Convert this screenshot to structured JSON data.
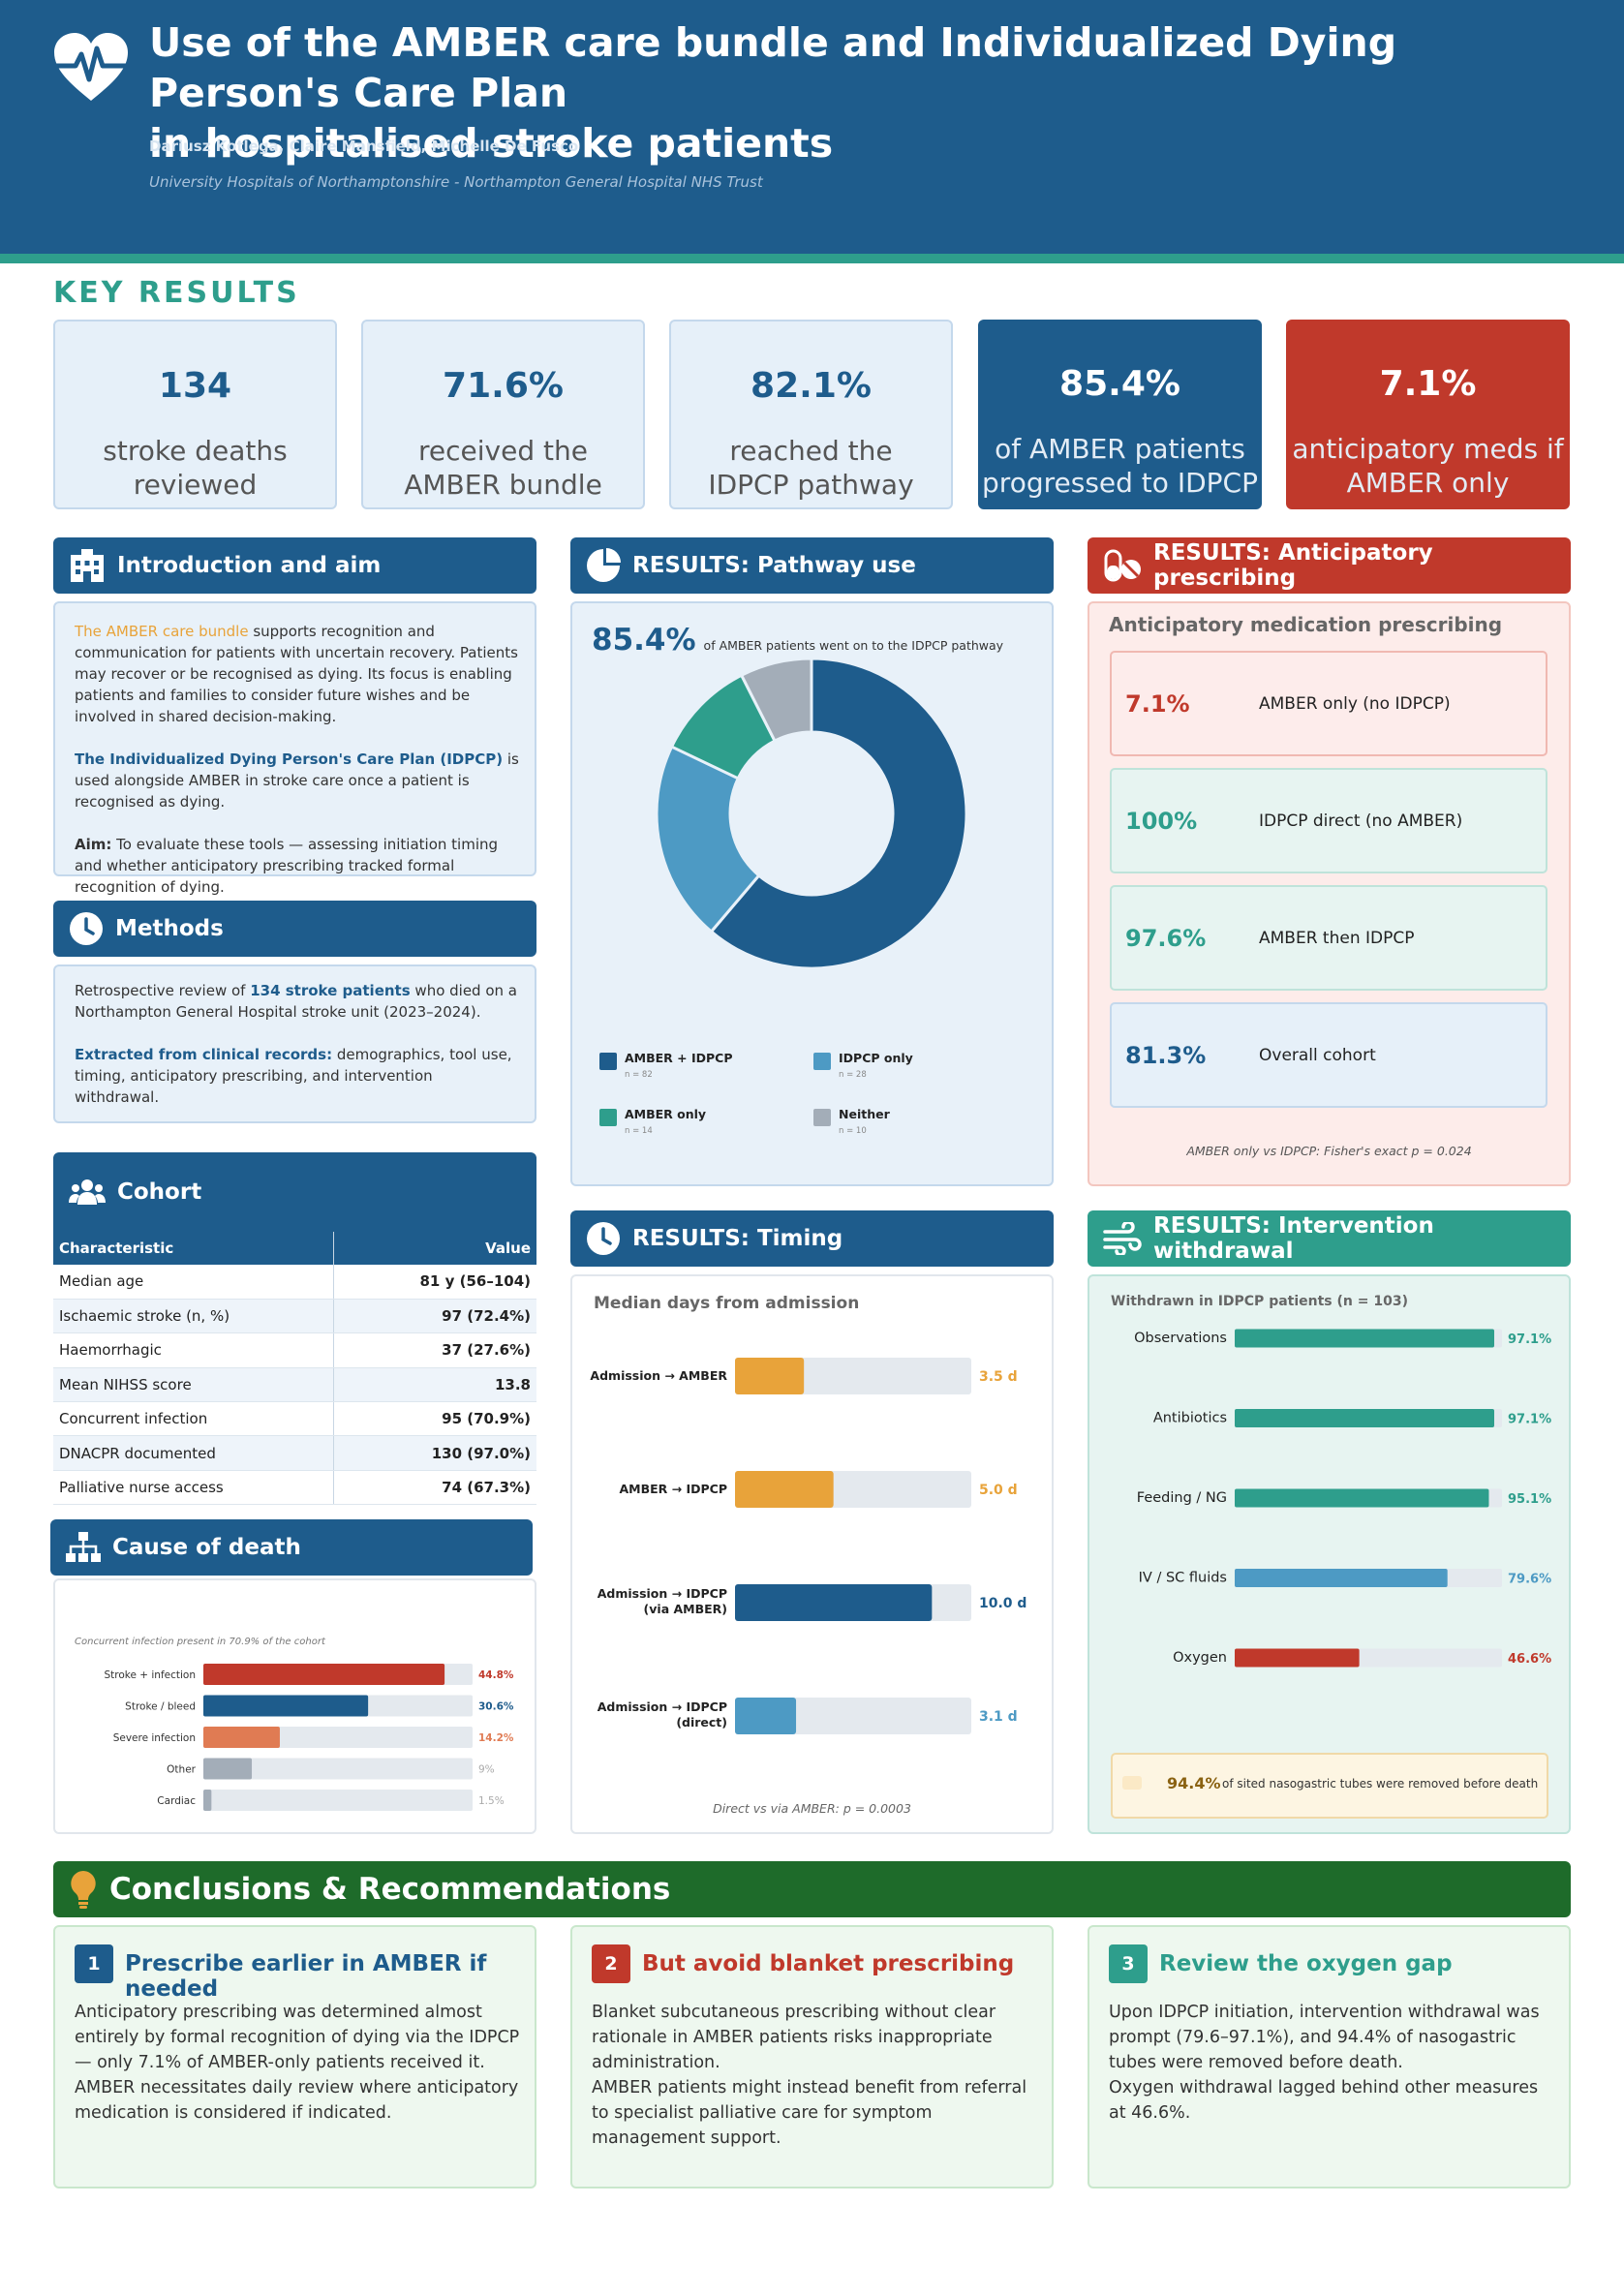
{
  "header": {
    "title_line1": "Use of the AMBER care bundle and Individualized Dying Person's Care Plan",
    "title_line2": "in hospitalised stroke patients",
    "authors": "Dariusz Kotlega, Claire Mansfield, Michelle De Fusco",
    "affiliation": "University Hospitals of Northamptonshire - Northampton General Hospital NHS Trust",
    "logo_icon": "heart-pulse-icon"
  },
  "key_results": {
    "heading": "KEY RESULTS",
    "cards": [
      {
        "value": "134",
        "label1": "stroke deaths",
        "label2": "reviewed"
      },
      {
        "value": "71.6%",
        "label1": "received the",
        "label2": "AMBER bundle"
      },
      {
        "value": "82.1%",
        "label1": "reached the",
        "label2": "IDPCP pathway"
      },
      {
        "value": "85.4%",
        "label1": "of AMBER patients",
        "label2": "progressed to IDPCP"
      },
      {
        "value": "7.1%",
        "label1": "anticipatory meds if",
        "label2": "AMBER only"
      }
    ]
  },
  "intro": {
    "heading": "Introduction and aim",
    "p1_highlight": "The AMBER care bundle",
    "p1_rest": " supports recognition and communication for patients with uncertain recovery. Patients may recover or be recognised as dying. Its focus is enabling patients and families to consider future wishes and be involved in shared decision-making.",
    "p2_highlight": "The Individualized Dying Person's Care Plan (IDPCP)",
    "p2_rest": " is used alongside AMBER in stroke care once a patient is recognised as dying.",
    "p3_label": "Aim:",
    "p3_rest": " To evaluate these tools — assessing initiation timing and whether anticipatory prescribing tracked formal recognition of dying."
  },
  "methods": {
    "heading": "Methods",
    "p1_a": "Retrospective review of ",
    "p1_highlight": "134 stroke patients",
    "p1_b": " who died on a Northampton General Hospital stroke unit (2023–2024).",
    "p2_highlight": "Extracted from clinical records:",
    "p2_rest": " demographics, tool use, timing, anticipatory prescribing, and intervention withdrawal."
  },
  "cohort": {
    "heading": "Cohort",
    "col1": "Characteristic",
    "col2": "Value",
    "rows": [
      {
        "label": "Median age",
        "value": "81 y (56–104)"
      },
      {
        "label": "Ischaemic stroke (n, %)",
        "value": "97 (72.4%)"
      },
      {
        "label": "Haemorrhagic",
        "value": "37 (27.6%)"
      },
      {
        "label": "Mean NIHSS score",
        "value": "13.8"
      },
      {
        "label": "Concurrent infection",
        "value": "95 (70.9%)"
      },
      {
        "label": "DNACPR documented",
        "value": "130 (97.0%)"
      },
      {
        "label": "Palliative nurse access",
        "value": "74 (67.3%)"
      }
    ]
  },
  "cause_of_death": {
    "heading": "Cause of death",
    "note": "Concurrent infection present in 70.9% of the cohort",
    "bars": [
      {
        "label": "Stroke + infection",
        "value": 44.8,
        "text": "44.8%",
        "color": "#c0392b"
      },
      {
        "label": "Stroke / bleed",
        "value": 30.6,
        "text": "30.6%",
        "color": "#1e5c8c"
      },
      {
        "label": "Severe infection",
        "value": 14.2,
        "text": "14.2%",
        "color": "#e07b53"
      },
      {
        "label": "Other",
        "value": 9,
        "text": "9%",
        "color": "#a3adb8"
      },
      {
        "label": "Cardiac",
        "value": 1.5,
        "text": "1.5%",
        "color": "#a3adb8"
      }
    ]
  },
  "pathway": {
    "heading": "RESULTS: Pathway use",
    "big_value": "85.4%",
    "big_caption": "of AMBER patients went on to the IDPCP pathway",
    "legend": [
      {
        "name": "AMBER + IDPCP",
        "n": "n = 82"
      },
      {
        "name": "IDPCP only",
        "n": "n = 28"
      },
      {
        "name": "AMBER only",
        "n": "n = 14"
      },
      {
        "name": "Neither",
        "n": "n = 10"
      }
    ]
  },
  "chart_data": [
    {
      "type": "pie",
      "title": "",
      "categories": [
        "AMBER + IDPCP",
        "IDPCP only",
        "AMBER only",
        "Neither"
      ],
      "values": [
        82,
        28,
        14,
        10
      ],
      "colors": [
        "#1e5c8c",
        "#4d9ac4",
        "#2e9e8c",
        "#a3adb8"
      ],
      "donut": true
    },
    {
      "type": "bar",
      "title": "Median days from admission",
      "categories": [
        "Admission → AMBER",
        "AMBER → IDPCP",
        "Admission → IDPCP (via AMBER)",
        "Admission → IDPCP (direct)"
      ],
      "values": [
        3.5,
        5.0,
        10.0,
        3.1
      ],
      "colors": [
        "#e8a33a",
        "#e8a33a",
        "#1e5c8c",
        "#4d9ac4"
      ],
      "xlim": [
        0,
        12
      ]
    },
    {
      "type": "bar",
      "title": "Withdrawn in IDPCP patients (n = 103)",
      "categories": [
        "Observations",
        "Antibiotics",
        "Feeding / NG",
        "IV / SC fluids",
        "Oxygen"
      ],
      "values": [
        97.1,
        97.1,
        95.1,
        79.6,
        46.6
      ],
      "colors": [
        "#2e9e8c",
        "#2e9e8c",
        "#2e9e8c",
        "#4d9ac4",
        "#c0392b"
      ],
      "xlim": [
        0,
        100
      ]
    },
    {
      "type": "bar",
      "title": "",
      "categories": [
        "Stroke + infection",
        "Stroke / bleed",
        "Severe infection",
        "Other",
        "Cardiac"
      ],
      "values": [
        44.8,
        30.6,
        14.2,
        9,
        1.5
      ],
      "xlim": [
        0,
        50
      ]
    }
  ],
  "timing": {
    "heading": "RESULTS: Timing",
    "subtitle": "Median days from admission",
    "rows": [
      {
        "label1": "Admission → AMBER",
        "label2": "",
        "value": 3.5,
        "text": "3.5 d",
        "color": "#e8a33a"
      },
      {
        "label1": "AMBER → IDPCP",
        "label2": "",
        "value": 5.0,
        "text": "5.0 d",
        "color": "#e8a33a"
      },
      {
        "label1": "Admission → IDPCP",
        "label2": "(via AMBER)",
        "value": 10.0,
        "text": "10.0 d",
        "color": "#1e5c8c"
      },
      {
        "label1": "Admission → IDPCP",
        "label2": "(direct)",
        "value": 3.1,
        "text": "3.1 d",
        "color": "#4d9ac4"
      }
    ],
    "footnote": "Direct vs via AMBER: p = 0.0003"
  },
  "prescribing": {
    "heading": "RESULTS: Anticipatory prescribing",
    "subtitle": "Anticipatory medication prescribing",
    "rows": [
      {
        "value": "7.1%",
        "label": "AMBER only (no IDPCP)",
        "color": "#c0392b",
        "bg": "#fdeceb",
        "border": "#f0b8b1"
      },
      {
        "value": "100%",
        "label": "IDPCP direct (no AMBER)",
        "color": "#2e9e8c",
        "bg": "#e7f4f1",
        "border": "#bfe3da"
      },
      {
        "value": "97.6%",
        "label": "AMBER then IDPCP",
        "color": "#2e9e8c",
        "bg": "#e7f4f1",
        "border": "#bfe3da"
      },
      {
        "value": "81.3%",
        "label": "Overall cohort",
        "color": "#1e5c8c",
        "bg": "#e6f0f9",
        "border": "#c4d8ec"
      }
    ],
    "footnote": "AMBER only vs IDPCP:  Fisher's exact p = 0.024"
  },
  "withdrawal": {
    "heading": "RESULTS: Intervention withdrawal",
    "subtitle": "Withdrawn in IDPCP patients (n = 103)",
    "rows": [
      {
        "label": "Observations",
        "value": 97.1,
        "text": "97.1%",
        "color": "#2e9e8c"
      },
      {
        "label": "Antibiotics",
        "value": 97.1,
        "text": "97.1%",
        "color": "#2e9e8c"
      },
      {
        "label": "Feeding / NG",
        "value": 95.1,
        "text": "95.1%",
        "color": "#2e9e8c"
      },
      {
        "label": "IV / SC fluids",
        "value": 79.6,
        "text": "79.6%",
        "color": "#4d9ac4"
      },
      {
        "label": "Oxygen",
        "value": 46.6,
        "text": "46.6%",
        "color": "#c0392b"
      }
    ],
    "callout_value": "94.4%",
    "callout_text": "of sited nasogastric tubes were removed before death"
  },
  "conclusions": {
    "heading": "Conclusions & Recommendations",
    "items": [
      {
        "num": "1",
        "title": "Prescribe earlier in AMBER if needed",
        "color": "#1e5c8c",
        "body1": "Anticipatory prescribing was determined almost entirely by formal recognition of dying via the IDPCP — only 7.1% of AMBER-only patients received it.",
        "body2": "AMBER necessitates daily review where anticipatory medication is considered if indicated."
      },
      {
        "num": "2",
        "title": "But avoid blanket prescribing",
        "color": "#c0392b",
        "body1": "Blanket subcutaneous prescribing without clear rationale in AMBER patients risks inappropriate administration.",
        "body2": "AMBER patients might instead benefit from referral to specialist palliative care for symptom management support."
      },
      {
        "num": "3",
        "title": "Review the oxygen gap",
        "color": "#2e9e8c",
        "body1": "Upon IDPCP initiation, intervention withdrawal was prompt (79.6–97.1%), and 94.4% of nasogastric tubes were removed before death.",
        "body2": "Oxygen withdrawal lagged behind other measures at 46.6%."
      }
    ]
  }
}
